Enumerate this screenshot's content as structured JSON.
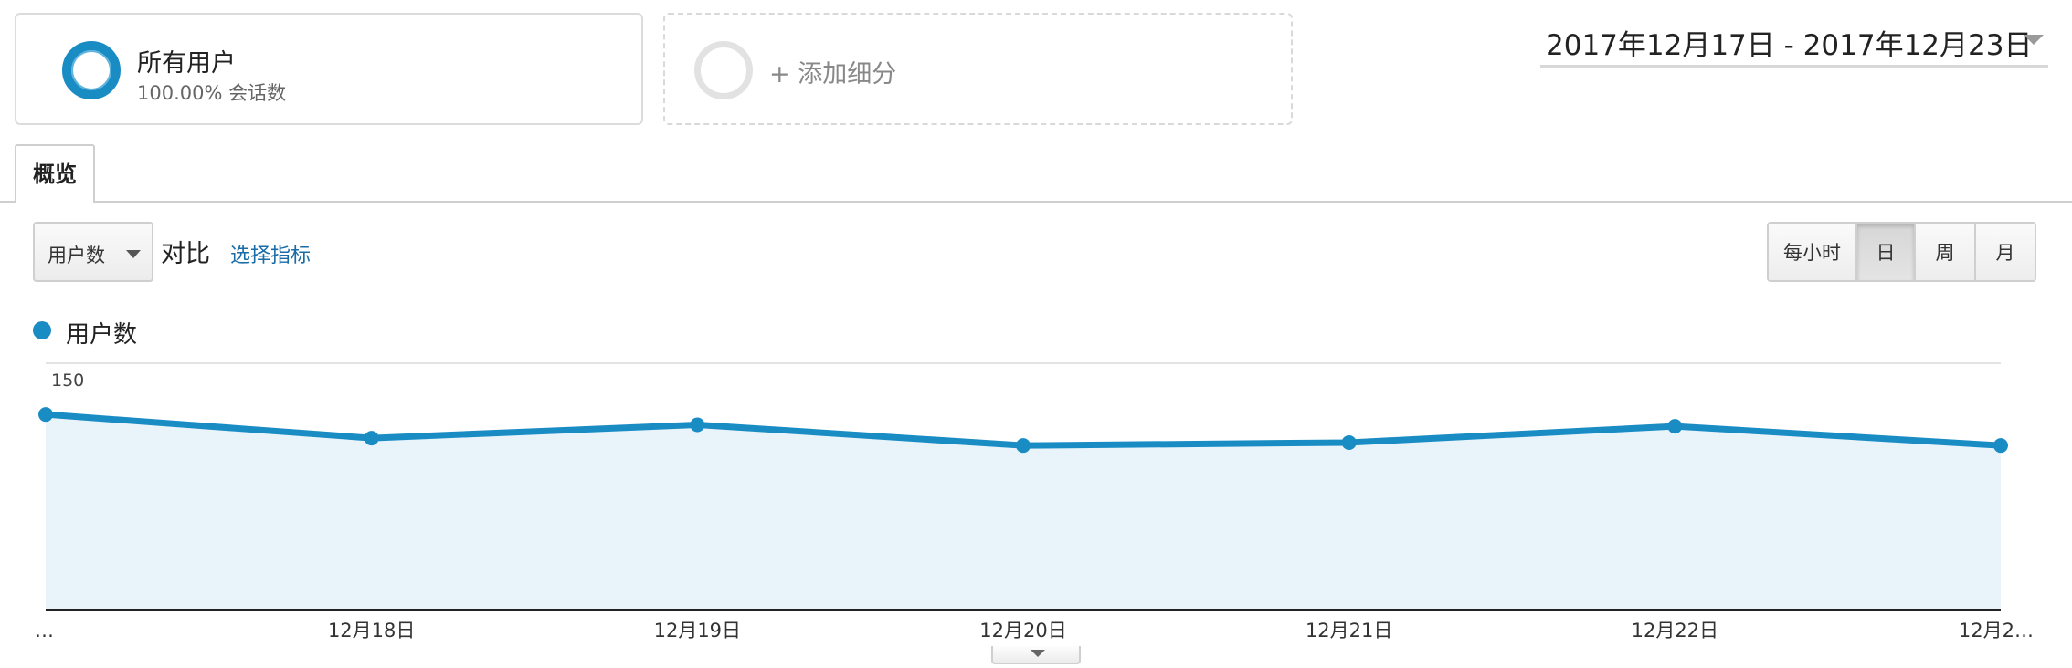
{
  "segments": {
    "all_users": {
      "name": "所有用户",
      "sub": "100.00% 会话数",
      "color": "#1a8cc4"
    },
    "add_segment": {
      "label": "+ 添加细分"
    }
  },
  "date_range": {
    "label": "2017年12月17日 - 2017年12月23日"
  },
  "tabs": [
    {
      "label": "概览"
    }
  ],
  "controls": {
    "metric_select": "用户数",
    "compare_label": "对比",
    "select_metric_link": "选择指标",
    "intervals": [
      {
        "label": "每小时",
        "active": false
      },
      {
        "label": "日",
        "active": true
      },
      {
        "label": "周",
        "active": false
      },
      {
        "label": "月",
        "active": false
      }
    ]
  },
  "legend": {
    "label": "用户数",
    "color": "#1a8cc4"
  },
  "chart_data": {
    "type": "area",
    "series": [
      {
        "name": "用户数",
        "values": [
          132,
          116,
          125,
          111,
          113,
          124,
          111
        ]
      }
    ],
    "tick_labels": [
      "…",
      "12月18日",
      "12月19日",
      "12月20日",
      "12月21日",
      "12月22日",
      "12月2…"
    ],
    "y_ticks": [
      150,
      75
    ],
    "ylim": [
      0,
      150
    ],
    "line_color": "#1a8cc4",
    "fill_color": "#e8f3fa",
    "grid": true
  }
}
